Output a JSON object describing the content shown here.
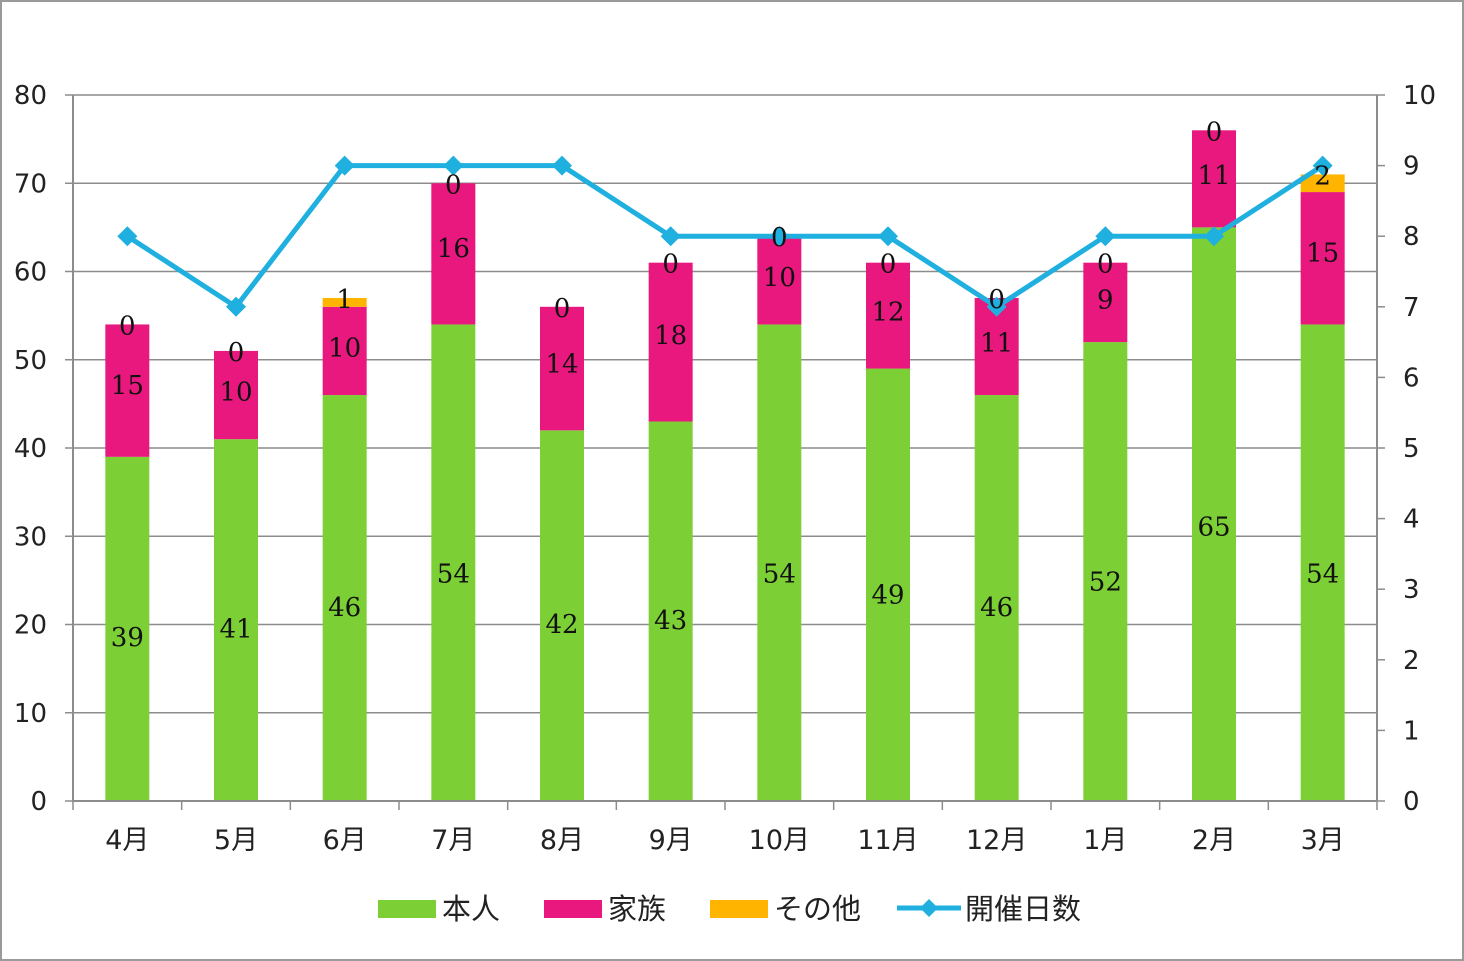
{
  "chart_data": {
    "type": "bar",
    "stacked": true,
    "categories": [
      "4月",
      "5月",
      "6月",
      "7月",
      "8月",
      "9月",
      "10月",
      "11月",
      "12月",
      "1月",
      "2月",
      "3月"
    ],
    "series": [
      {
        "name": "本人",
        "color": "#7ccf35",
        "values": [
          39,
          41,
          46,
          54,
          42,
          43,
          54,
          49,
          46,
          52,
          65,
          54
        ]
      },
      {
        "name": "家族",
        "color": "#e8187e",
        "values": [
          15,
          10,
          10,
          16,
          14,
          18,
          10,
          12,
          11,
          9,
          11,
          15
        ]
      },
      {
        "name": "その他",
        "color": "#ffb400",
        "values": [
          0,
          0,
          1,
          0,
          0,
          0,
          0,
          0,
          0,
          0,
          0,
          2
        ]
      }
    ],
    "line_series": {
      "name": "開催日数",
      "color": "#1fb0e0",
      "axis": "right",
      "values": [
        8,
        7,
        9,
        9,
        9,
        8,
        8,
        8,
        7,
        8,
        8,
        9
      ]
    },
    "ylim": [
      0,
      80
    ],
    "yticks": [
      "0",
      "10",
      "20",
      "30",
      "40",
      "50",
      "60",
      "70",
      "80"
    ],
    "y2lim": [
      0,
      10
    ],
    "y2ticks": [
      "0",
      "1",
      "2",
      "3",
      "4",
      "5",
      "6",
      "7",
      "8",
      "9",
      "10"
    ],
    "grid": true,
    "legend_position": "bottom"
  }
}
